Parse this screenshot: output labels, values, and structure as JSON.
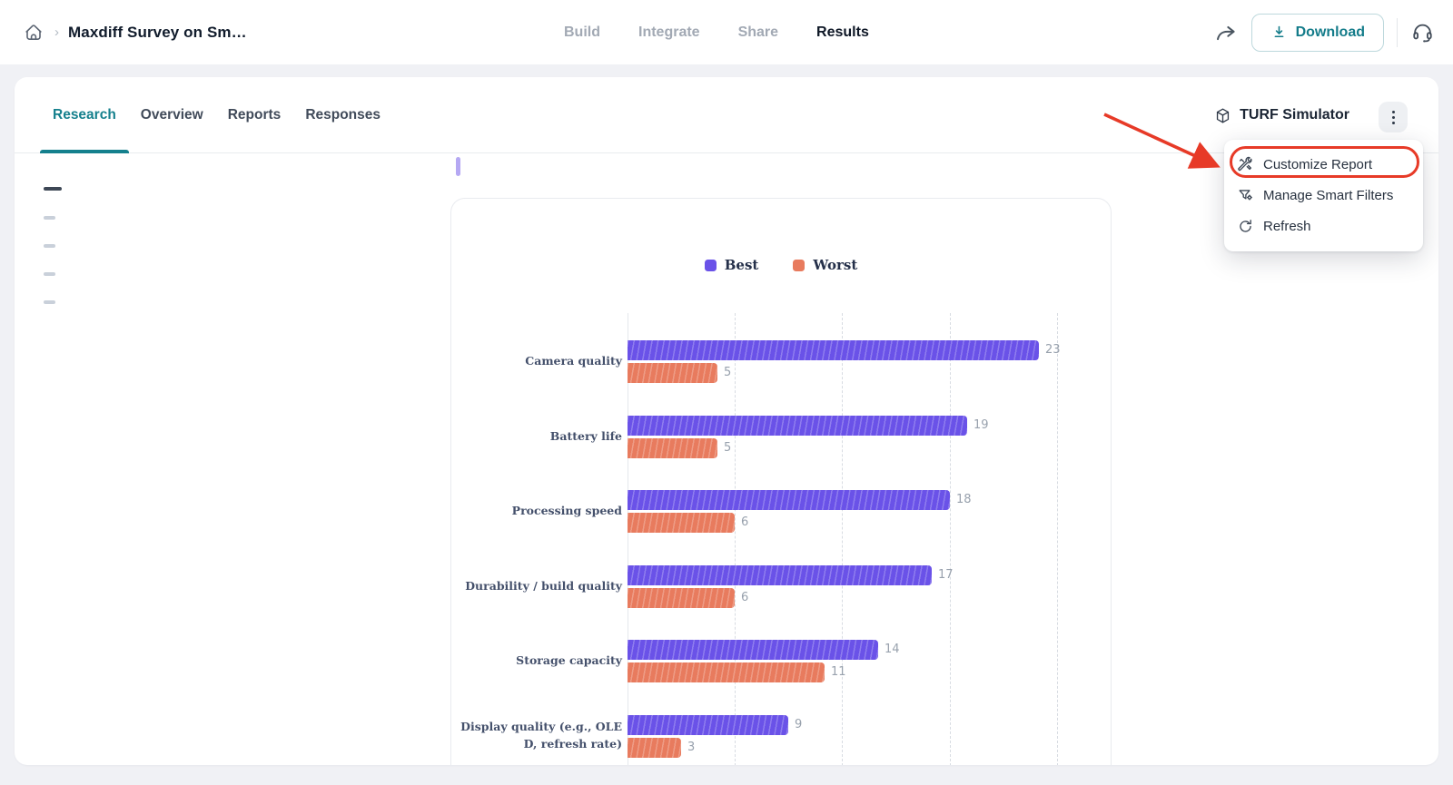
{
  "topbar": {
    "title": "Maxdiff Survey on Sm…",
    "nav": [
      {
        "label": "Build",
        "active": false
      },
      {
        "label": "Integrate",
        "active": false
      },
      {
        "label": "Share",
        "active": false
      },
      {
        "label": "Results",
        "active": true
      }
    ],
    "download_label": "Download"
  },
  "tabs": [
    {
      "label": "Research",
      "active": true
    },
    {
      "label": "Overview",
      "active": false
    },
    {
      "label": "Reports",
      "active": false
    },
    {
      "label": "Responses",
      "active": false
    }
  ],
  "turf": {
    "label": "TURF Simulator"
  },
  "menu": {
    "items": [
      {
        "label": "Customize Report",
        "icon": "tools-icon",
        "highlighted": true
      },
      {
        "label": "Manage Smart Filters",
        "icon": "smart-filter-icon",
        "highlighted": false
      },
      {
        "label": "Refresh",
        "icon": "refresh-icon",
        "highlighted": false
      }
    ]
  },
  "colors": {
    "accent_teal": "#15808D",
    "best": "#6A52E8",
    "worst": "#E87B5E",
    "annotation_red": "#E73A27"
  },
  "chart_data": {
    "type": "bar",
    "orientation": "horizontal",
    "title": "",
    "categories": [
      "Camera quality",
      "Battery life",
      "Processing speed",
      "Durability / build quality",
      "Storage capacity",
      "Display quality (e.g., OLED, refresh rate)"
    ],
    "series": [
      {
        "name": "Best",
        "color": "#6A52E8",
        "values": [
          23,
          19,
          18,
          17,
          14,
          9
        ]
      },
      {
        "name": "Worst",
        "color": "#E87B5E",
        "values": [
          5,
          5,
          6,
          6,
          11,
          3
        ]
      }
    ],
    "xlim": [
      0,
      24
    ],
    "gridline_values": [
      6,
      12,
      18,
      24
    ],
    "grid": "vertical-dashed",
    "legend_position": "top",
    "value_labels": "end-of-bar"
  }
}
